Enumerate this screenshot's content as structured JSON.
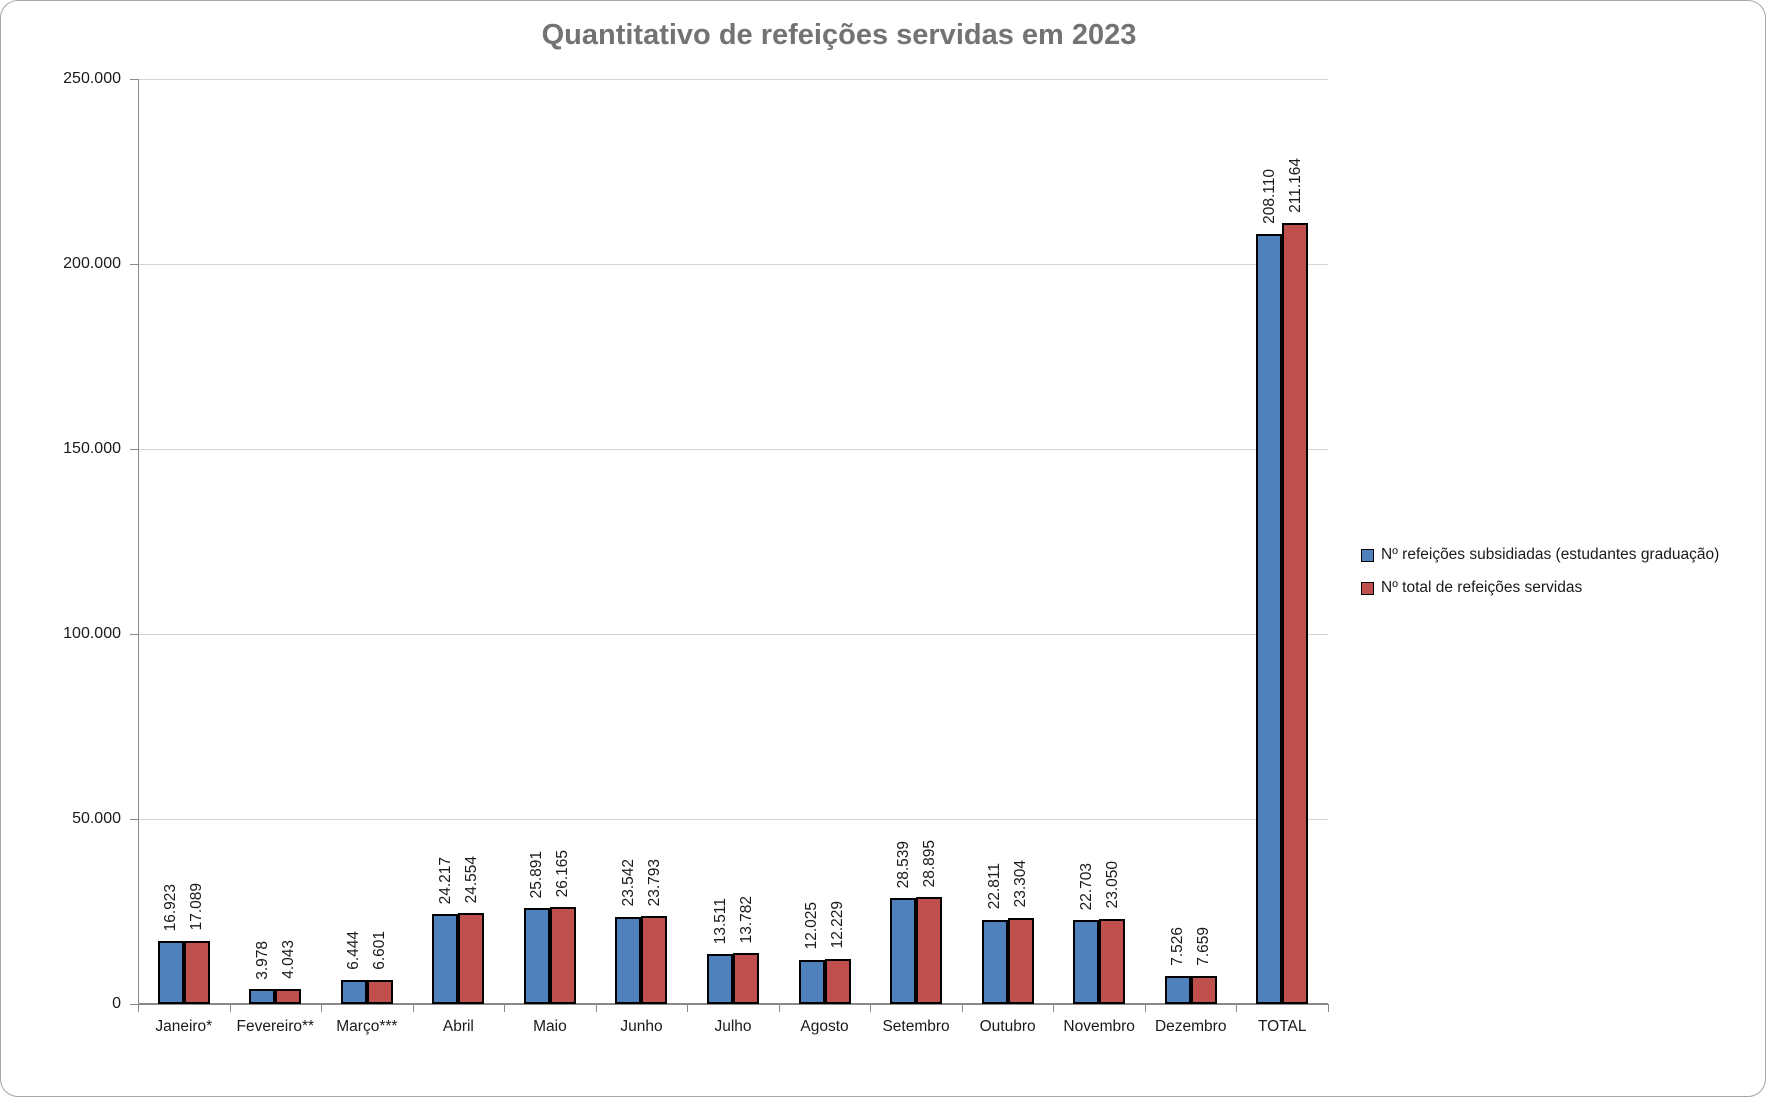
{
  "chart": {
    "title": "Quantitativo de refeições servidas em 2023"
  },
  "chart_data": {
    "type": "bar",
    "title": "Quantitativo de refeições servidas em 2023",
    "categories": [
      "Janeiro*",
      "Fevereiro**",
      "Março***",
      "Abril",
      "Maio",
      "Junho",
      "Julho",
      "Agosto",
      "Setembro",
      "Outubro",
      "Novembro",
      "Dezembro",
      "TOTAL"
    ],
    "series": [
      {
        "name": "Nº refeições subsidiadas (estudantes graduação)",
        "color": "#4F81BD",
        "values": [
          16923,
          3978,
          6444,
          24217,
          25891,
          23542,
          13511,
          12025,
          28539,
          22811,
          22703,
          7526,
          208110
        ],
        "labels": [
          "16.923",
          "3.978",
          "6.444",
          "24.217",
          "25.891",
          "23.542",
          "13.511",
          "12.025",
          "28.539",
          "22.811",
          "22.703",
          "7.526",
          "208.110"
        ]
      },
      {
        "name": "Nº total de refeições servidas",
        "color": "#C0504D",
        "values": [
          17089,
          4043,
          6601,
          24554,
          26165,
          23793,
          13782,
          12229,
          28895,
          23304,
          23050,
          7659,
          211164
        ],
        "labels": [
          "17.089",
          "4.043",
          "6.601",
          "24.554",
          "26.165",
          "23.793",
          "13.782",
          "12.229",
          "28.895",
          "23.304",
          "23.050",
          "7.659",
          "211.164"
        ]
      }
    ],
    "ylim": [
      0,
      250000
    ],
    "y_tick_values": [
      0,
      50000,
      100000,
      150000,
      200000,
      250000
    ],
    "y_tick_labels": [
      "0",
      "50.000",
      "100.000",
      "150.000",
      "200.000",
      "250.000"
    ],
    "grid": true,
    "legend_position": "right",
    "data_label_rotation": "vertical"
  },
  "colors": {
    "title_text": "#737373",
    "axis": "#898989",
    "gridline": "#d4d4d4",
    "bar_border": "#000000",
    "series1_fill": "#4F81BD",
    "series2_fill": "#C0504D",
    "chart_border": "#a6a6a6",
    "background": "#ffffff"
  }
}
